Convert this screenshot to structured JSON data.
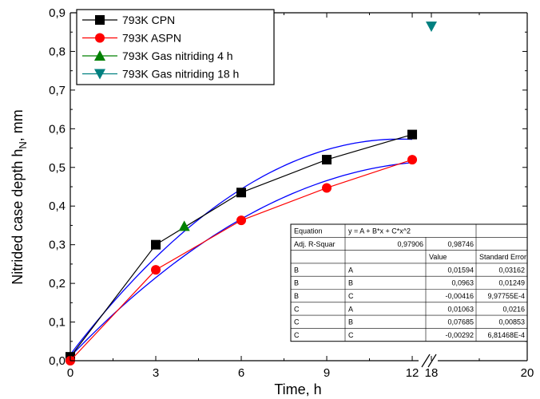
{
  "chart_data": {
    "type": "line",
    "xlabel": "Time, h",
    "ylabel_main": "Nitrided case depth h",
    "ylabel_sub": "N",
    "ylabel_unit": ", mm",
    "x_ticks": [
      "0",
      "3",
      "6",
      "9",
      "12",
      "18",
      "20"
    ],
    "y_ticks": [
      "0,0",
      "0,1",
      "0,2",
      "0,3",
      "0,4",
      "0,5",
      "0,6",
      "0,7",
      "0,8",
      "0,9"
    ],
    "ylim": [
      0,
      0.9
    ],
    "axis_break_between": [
      12,
      18
    ],
    "series": [
      {
        "name": "793K CPN",
        "color": "#000000",
        "marker": "square",
        "x": [
          0,
          3,
          6,
          9,
          12
        ],
        "y": [
          0.01,
          0.3,
          0.435,
          0.52,
          0.585
        ]
      },
      {
        "name": "793K ASPN",
        "color": "#ff0000",
        "marker": "circle",
        "x": [
          0,
          3,
          6,
          9,
          12
        ],
        "y": [
          0.0,
          0.235,
          0.363,
          0.447,
          0.52
        ]
      },
      {
        "name": "793K Gas nitriding 4 h",
        "color": "#008000",
        "marker": "triangle-up",
        "x": [
          4
        ],
        "y": [
          0.348
        ]
      },
      {
        "name": "793K Gas nitriding 18 h",
        "color": "#008080",
        "marker": "triangle-down",
        "x": [
          18
        ],
        "y": [
          0.865
        ]
      }
    ],
    "fits": [
      {
        "A": 0.01594,
        "B": 0.0963,
        "C": -0.00416,
        "color": "#0000ff"
      },
      {
        "A": 0.01063,
        "B": 0.07685,
        "C": -0.00292,
        "color": "#0000ff"
      }
    ],
    "fit_table": {
      "equation_label": "Equation",
      "equation": "y = A + B*x + C*x^2",
      "r2_label": "Adj. R-Squar",
      "r2_values": [
        "0,97906",
        "0,98746"
      ],
      "header": [
        "",
        "",
        "Value",
        "Standard Error"
      ],
      "rows": [
        [
          "B",
          "A",
          "0,01594",
          "0,03162"
        ],
        [
          "B",
          "B",
          "0,0963",
          "0,01249"
        ],
        [
          "B",
          "C",
          "-0,00416",
          "9,97755E-4"
        ],
        [
          "C",
          "A",
          "0,01063",
          "0,0216"
        ],
        [
          "C",
          "B",
          "0,07685",
          "0,00853"
        ],
        [
          "C",
          "C",
          "-0,00292",
          "6,81468E-4"
        ]
      ]
    }
  }
}
